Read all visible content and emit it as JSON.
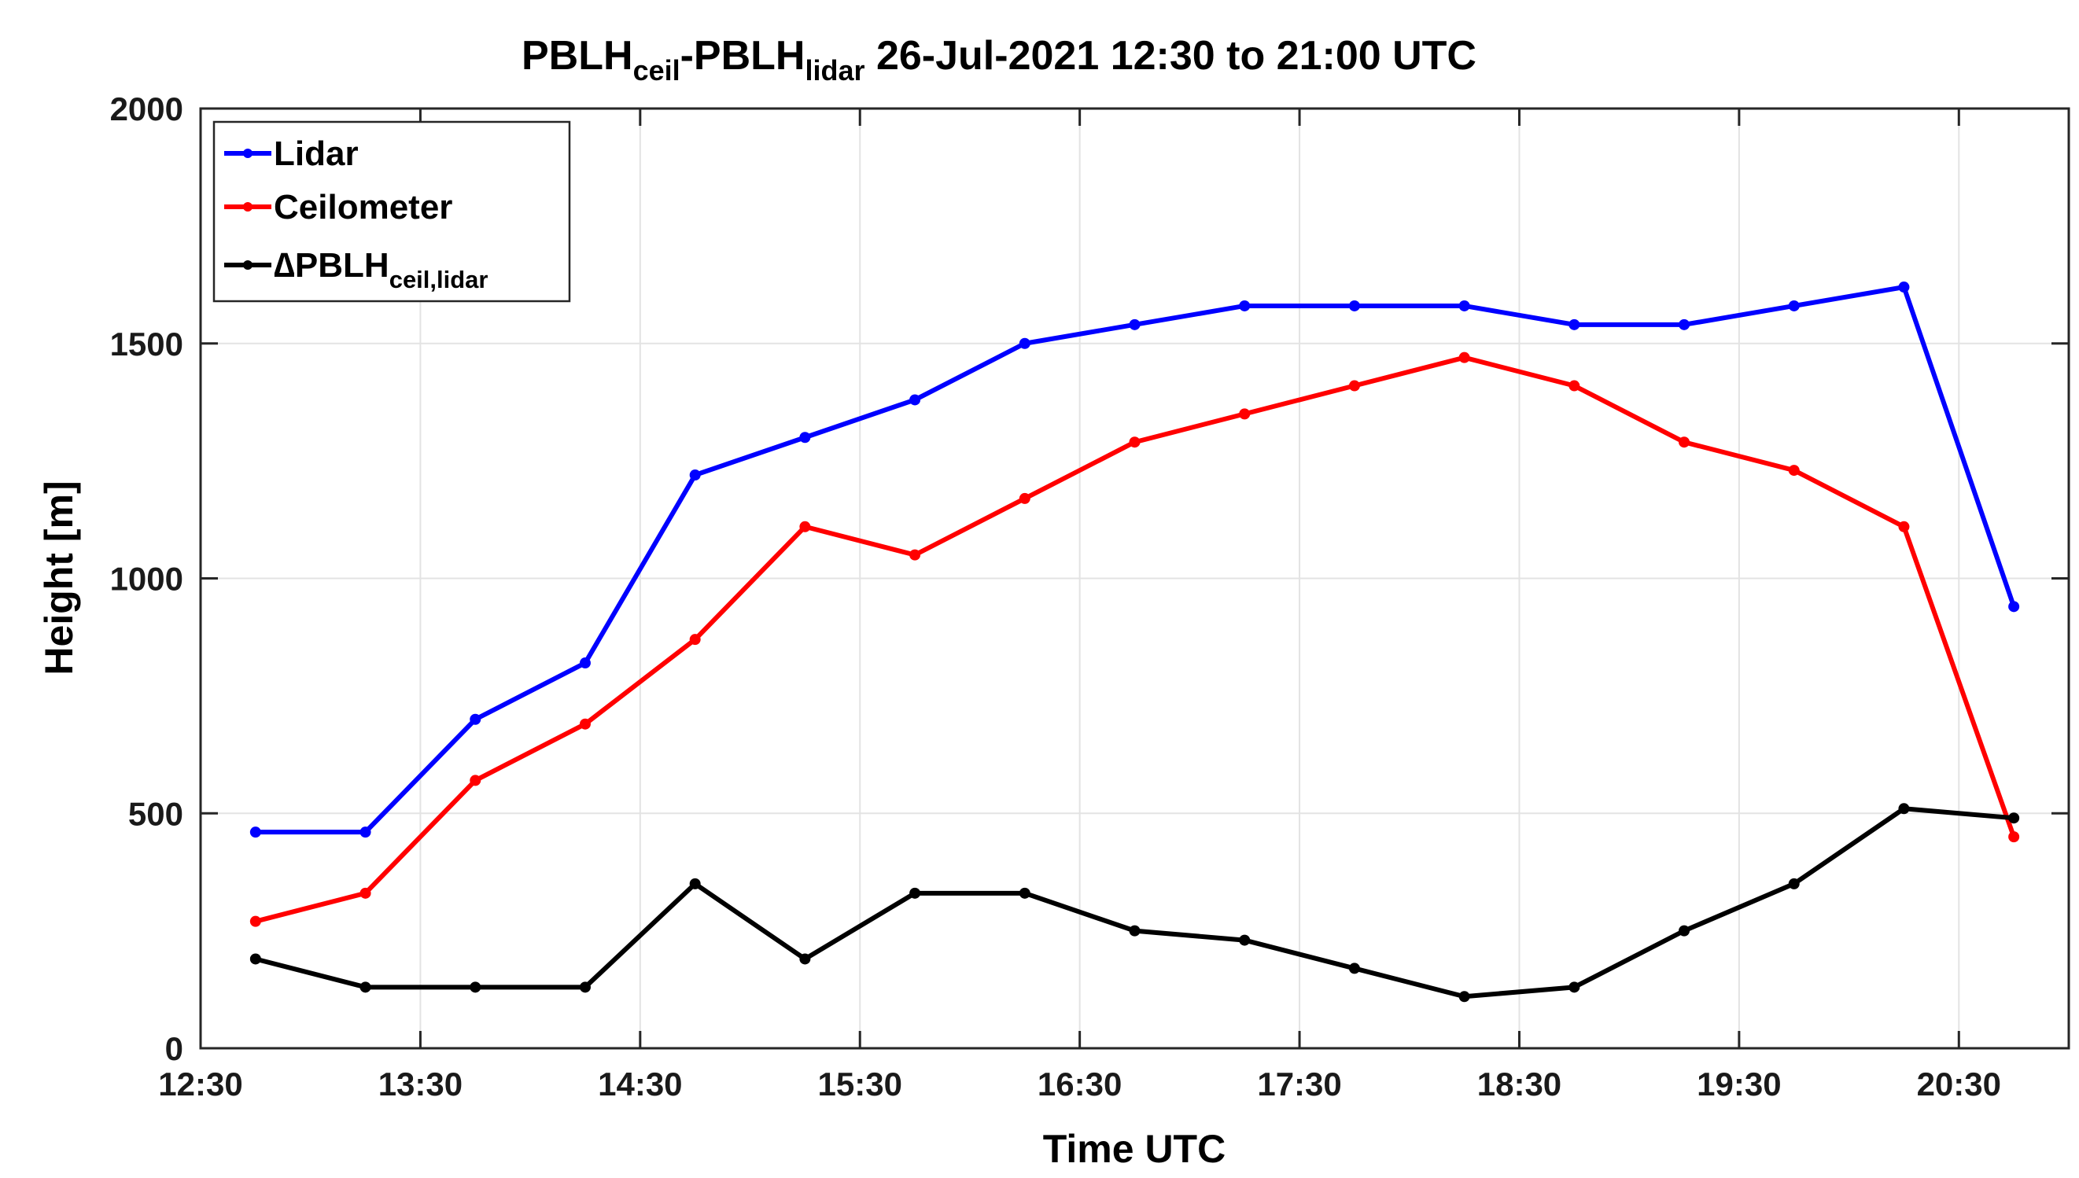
{
  "chart_data": {
    "type": "line",
    "title": {
      "main": "PBLH",
      "sub1": "ceil",
      "mid": "-PBLH",
      "sub2": "lidar",
      "rest": " 26-Jul-2021 12:30 to 21:00 UTC"
    },
    "xlabel": "Time UTC",
    "ylabel": "Height [m]",
    "xlim": [
      "12:30",
      "21:00"
    ],
    "ylim": [
      0,
      2000
    ],
    "x_ticks": [
      "12:30",
      "13:30",
      "14:30",
      "15:30",
      "16:30",
      "17:30",
      "18:30",
      "19:30",
      "20:30"
    ],
    "y_ticks": [
      0,
      500,
      1000,
      1500,
      2000
    ],
    "grid": true,
    "legend_position": "top-left",
    "x": [
      "12:45",
      "13:15",
      "13:45",
      "14:15",
      "14:45",
      "15:15",
      "15:45",
      "16:15",
      "16:45",
      "17:15",
      "17:45",
      "18:15",
      "18:45",
      "19:15",
      "19:45",
      "20:15",
      "20:45"
    ],
    "series": [
      {
        "name": "Lidar",
        "color": "#0000ff",
        "values": [
          460,
          460,
          700,
          820,
          1220,
          1300,
          1380,
          1500,
          1540,
          1580,
          1580,
          1580,
          1540,
          1540,
          1580,
          1620,
          940
        ]
      },
      {
        "name": "Ceilometer",
        "color": "#ff0000",
        "values": [
          270,
          330,
          570,
          690,
          870,
          1110,
          1050,
          1170,
          1290,
          1350,
          1410,
          1470,
          1410,
          1290,
          1230,
          1110,
          450
        ]
      },
      {
        "name": {
          "prefix": "∆PBLH",
          "sub": "ceil,lidar"
        },
        "color": "#000000",
        "values": [
          190,
          130,
          130,
          130,
          350,
          190,
          330,
          330,
          250,
          230,
          170,
          110,
          130,
          250,
          350,
          510,
          490
        ]
      }
    ]
  }
}
